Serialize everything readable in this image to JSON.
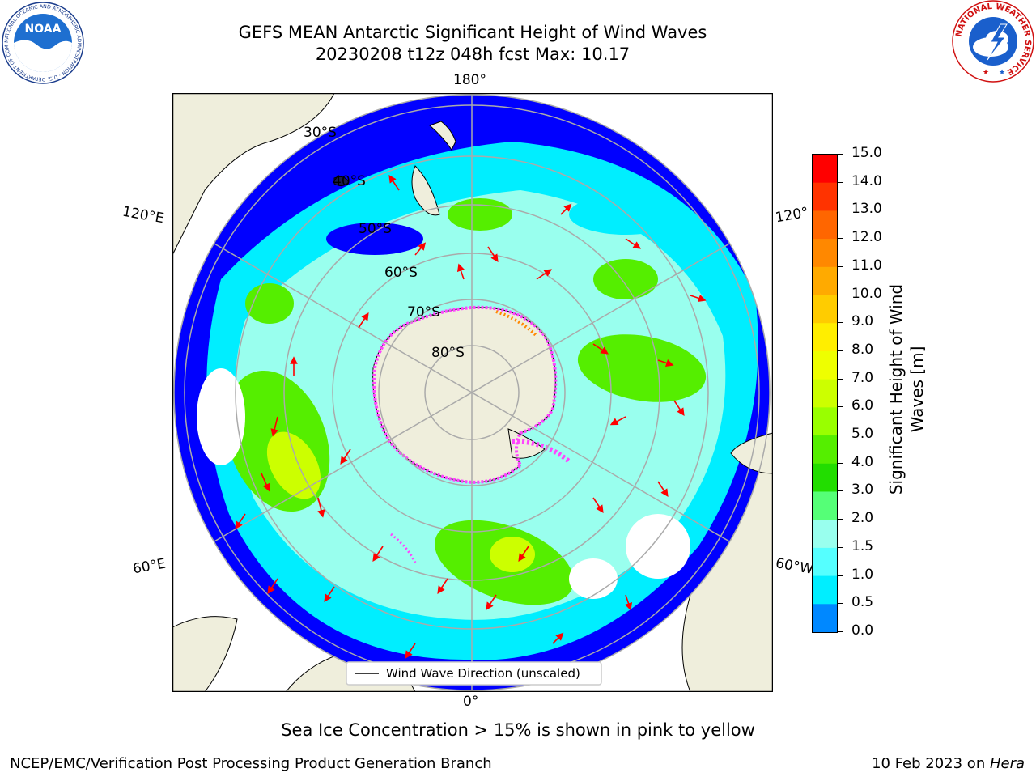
{
  "title": {
    "line1": "GEFS MEAN Antarctic Significant Height of Wind Waves",
    "line2": "20230208 t12z 048h fcst   Max: 10.17"
  },
  "map": {
    "longitude_labels": {
      "top": "180°",
      "bottom": "0°",
      "upper_left": "120°E",
      "lower_left": "60°E",
      "upper_right": "120°",
      "lower_right": "60°W"
    },
    "latitude_labels": [
      "30°S",
      "40°S",
      "50°S",
      "60°S",
      "70°S",
      "80°S"
    ],
    "legend_label": "Wind Wave Direction (unscaled)"
  },
  "colorbar": {
    "label_line1": "Significant Height of Wind",
    "label_line2": "Waves [m]",
    "ticks": [
      "15.0",
      "14.0",
      "13.0",
      "12.0",
      "11.0",
      "10.0",
      "9.0",
      "8.0",
      "7.0",
      "6.0",
      "5.0",
      "4.0",
      "3.0",
      "2.0",
      "1.5",
      "1.0",
      "0.5",
      "0.0"
    ],
    "colors": [
      "#ff0000",
      "#ff3300",
      "#ff6600",
      "#ff8800",
      "#ffaa00",
      "#ffcc00",
      "#ffee00",
      "#eeff00",
      "#ccff00",
      "#99ff00",
      "#55ee00",
      "#22dd00",
      "#55ff77",
      "#99ffee",
      "#55ffff",
      "#00eeff",
      "#0088ff",
      "#0000ff"
    ]
  },
  "note": "Sea Ice Concentration > 15% is shown in pink to yellow",
  "footer": {
    "left": "NCEP/EMC/Verification Post Processing Product Generation Branch",
    "right_prefix": "10 Feb 2023 on ",
    "right_host": "Hera"
  },
  "logos": {
    "noaa_text": "NOAA",
    "noaa_ring": "NATIONAL OCEANIC AND ATMOSPHERIC ADMINISTRATION · U.S. DEPARTMENT OF COMMERCE ·",
    "nws_ring": "NATIONAL WEATHER SERVICE"
  },
  "colors": {
    "land": "#efeedc",
    "ocean_low": "#0000ff",
    "ocean_mid": "#00eeff",
    "ocean_high": "#55ee00",
    "arrows": "#ff0000",
    "ice": "#ff44ff"
  }
}
